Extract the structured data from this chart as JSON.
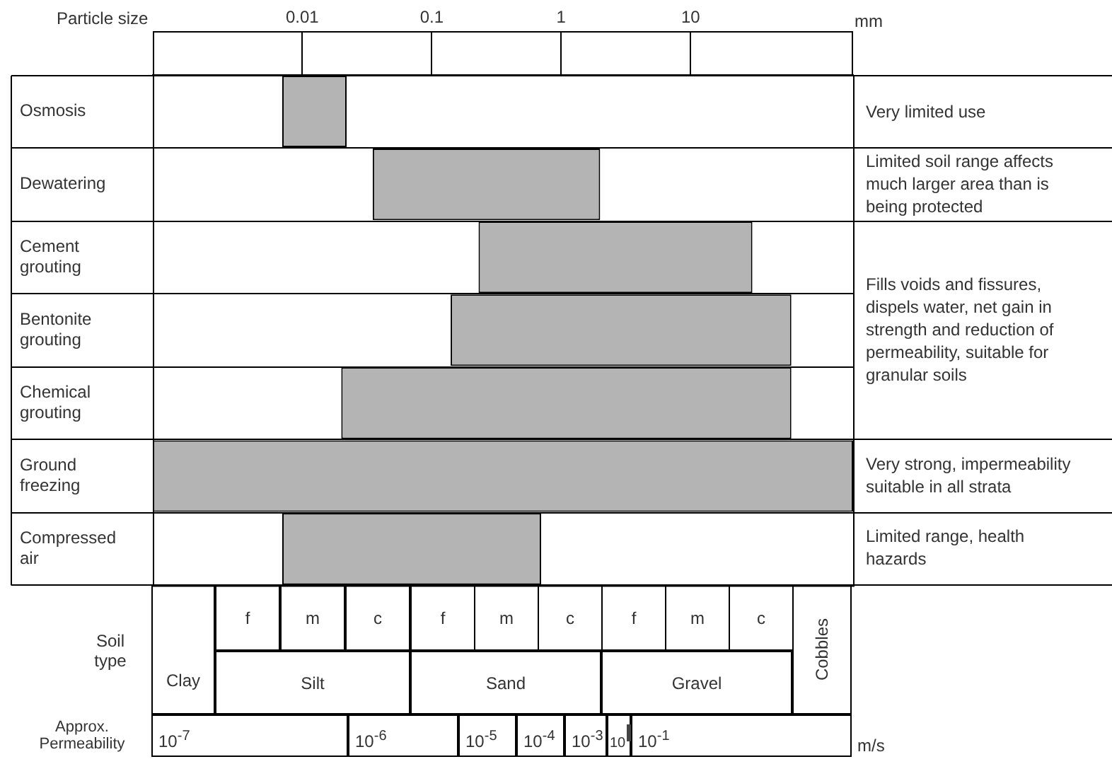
{
  "chart_data": {
    "type": "bar",
    "orientation": "horizontal",
    "log": "x",
    "xlabel": "Particle size",
    "categories": [
      "Osmosis",
      "Dewatering",
      "Cement grouting",
      "Bentonite grouting",
      "Chemical grouting",
      "Ground freezing",
      "Compressed air"
    ],
    "base": [
      0.007,
      0.035,
      0.23,
      0.14,
      0.02,
      0.0007,
      0.007
    ],
    "values": [
      0.015,
      1.965,
      29.77,
      59.86,
      59.98,
      179.9993,
      0.693
    ],
    "color": "#b4b4b4",
    "xlim": [
      0.0007,
      180
    ],
    "xticks": [
      0.01,
      0.1,
      1,
      10
    ],
    "grid": "y",
    "legend": false,
    "annotations": [
      "Very limited use",
      "Limited soil range affects much larger area than is being protected",
      "Fills voids and fissures, dispels water, net gain in strength and reduction of permeability, suitable for granular soils",
      "Very strong, impermeability suitable in all strata",
      "Limited range, health hazards",
      "Soil type",
      "Clay",
      "Silt",
      "Sand",
      "Gravel",
      "Cobbles",
      "f",
      "m",
      "c",
      "f",
      "m",
      "c",
      "f",
      "m",
      "c",
      "Approx. Permeability",
      "10$^{-7}$",
      "10$^{-6}$",
      "10$^{-5}$",
      "10$^{-4}$",
      "10$^{-3}$",
      "10",
      "10$^{-1}$",
      "m/s",
      "mm"
    ]
  }
}
